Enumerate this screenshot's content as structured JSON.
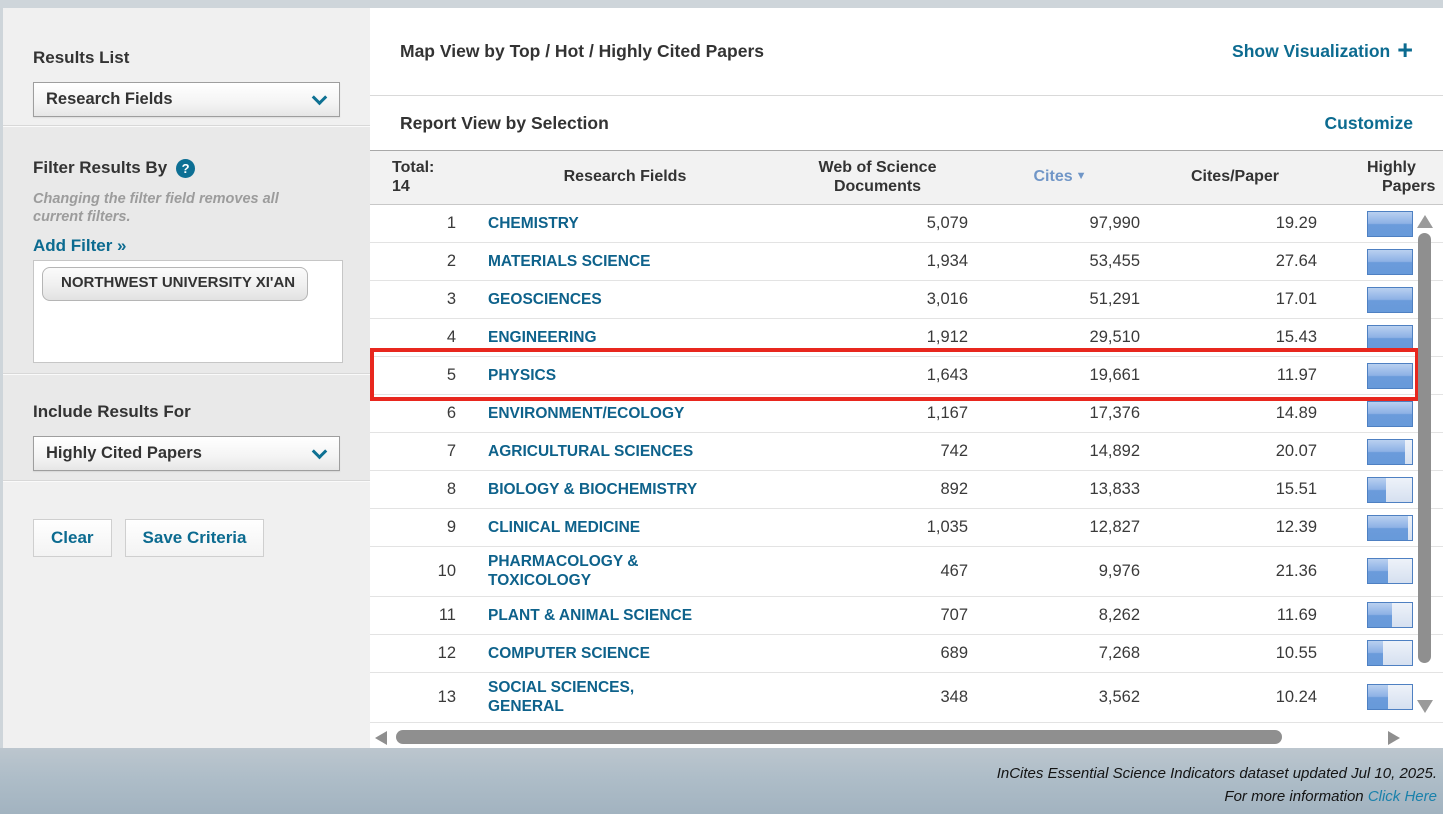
{
  "sidebar": {
    "results_list": {
      "label": "Results List",
      "value": "Research Fields"
    },
    "filter": {
      "title": "Filter Results By",
      "help_glyph": "?",
      "note": "Changing the filter field removes all current filters.",
      "add_filter_label": "Add Filter »",
      "active_filter": "NORTHWEST UNIVERSITY XI'AN"
    },
    "include": {
      "label": "Include Results For",
      "value": "Highly Cited Papers"
    },
    "buttons": {
      "clear": "Clear",
      "save": "Save Criteria"
    }
  },
  "main": {
    "map_view": {
      "title": "Map View by Top / Hot / Highly Cited Papers",
      "action": "Show Visualization",
      "action_icon": "+"
    },
    "report_view": {
      "title": "Report View by Selection",
      "action": "Customize"
    }
  },
  "table": {
    "total_label": "Total:",
    "total_value": "14",
    "col_field": "Research Fields",
    "col_docs": "Web of Science Documents",
    "col_cites": "Cites",
    "col_cites_sort_icon": "▼",
    "col_cpp": "Cites/Paper",
    "col_hcp_line1": "Highly",
    "col_hcp_line2": "Papers",
    "rows": [
      {
        "rank": "1",
        "field_lines": [
          "CHEMISTRY"
        ],
        "docs": "5,079",
        "cites": "97,990",
        "cites_per_paper": "19.29",
        "bar_fill": 1.0,
        "highlighted": false
      },
      {
        "rank": "2",
        "field_lines": [
          "MATERIALS SCIENCE"
        ],
        "docs": "1,934",
        "cites": "53,455",
        "cites_per_paper": "27.64",
        "bar_fill": 1.0,
        "highlighted": false
      },
      {
        "rank": "3",
        "field_lines": [
          "GEOSCIENCES"
        ],
        "docs": "3,016",
        "cites": "51,291",
        "cites_per_paper": "17.01",
        "bar_fill": 1.0,
        "highlighted": false
      },
      {
        "rank": "4",
        "field_lines": [
          "ENGINEERING"
        ],
        "docs": "1,912",
        "cites": "29,510",
        "cites_per_paper": "15.43",
        "bar_fill": 1.0,
        "highlighted": false
      },
      {
        "rank": "5",
        "field_lines": [
          "PHYSICS"
        ],
        "docs": "1,643",
        "cites": "19,661",
        "cites_per_paper": "11.97",
        "bar_fill": 1.0,
        "highlighted": true
      },
      {
        "rank": "6",
        "field_lines": [
          "ENVIRONMENT/ECOLOGY"
        ],
        "docs": "1,167",
        "cites": "17,376",
        "cites_per_paper": "14.89",
        "bar_fill": 1.0,
        "highlighted": false
      },
      {
        "rank": "7",
        "field_lines": [
          "AGRICULTURAL SCIENCES"
        ],
        "docs": "742",
        "cites": "14,892",
        "cites_per_paper": "20.07",
        "bar_fill": 0.85,
        "highlighted": false
      },
      {
        "rank": "8",
        "field_lines": [
          "BIOLOGY & BIOCHEMISTRY"
        ],
        "docs": "892",
        "cites": "13,833",
        "cites_per_paper": "15.51",
        "bar_fill": 0.42,
        "highlighted": false
      },
      {
        "rank": "9",
        "field_lines": [
          "CLINICAL MEDICINE"
        ],
        "docs": "1,035",
        "cites": "12,827",
        "cites_per_paper": "12.39",
        "bar_fill": 0.92,
        "highlighted": false
      },
      {
        "rank": "10",
        "field_lines": [
          "PHARMACOLOGY &",
          "TOXICOLOGY"
        ],
        "docs": "467",
        "cites": "9,976",
        "cites_per_paper": "21.36",
        "bar_fill": 0.45,
        "highlighted": false
      },
      {
        "rank": "11",
        "field_lines": [
          "PLANT & ANIMAL SCIENCE"
        ],
        "docs": "707",
        "cites": "8,262",
        "cites_per_paper": "11.69",
        "bar_fill": 0.55,
        "highlighted": false
      },
      {
        "rank": "12",
        "field_lines": [
          "COMPUTER SCIENCE"
        ],
        "docs": "689",
        "cites": "7,268",
        "cites_per_paper": "10.55",
        "bar_fill": 0.33,
        "highlighted": false
      },
      {
        "rank": "13",
        "field_lines": [
          "SOCIAL SCIENCES,",
          "GENERAL"
        ],
        "docs": "348",
        "cites": "3,562",
        "cites_per_paper": "10.24",
        "bar_fill": 0.45,
        "highlighted": false
      }
    ]
  },
  "footer": {
    "line1": "InCites Essential Science Indicators dataset updated Jul 10, 2025.",
    "line2_prefix": "For more information",
    "link": "Click Here"
  }
}
